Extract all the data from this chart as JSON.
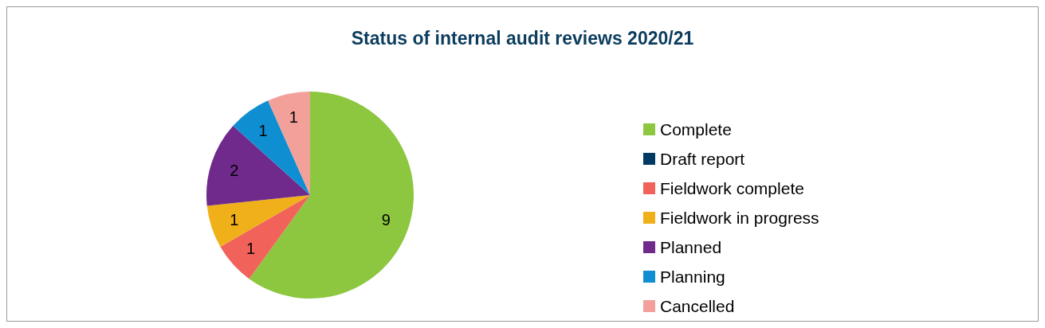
{
  "chart_data": {
    "type": "pie",
    "title": "Status of internal audit reviews 2020/21",
    "categories": [
      "Complete",
      "Draft report",
      "Fieldwork complete",
      "Fieldwork in progress",
      "Planned",
      "Planning",
      "Cancelled"
    ],
    "values": [
      9,
      0,
      1,
      1,
      2,
      1,
      1
    ],
    "value_labels": [
      "9",
      null,
      "1",
      "1",
      "2",
      "1",
      "1"
    ],
    "colors": [
      "#8dc63f",
      "#003a63",
      "#f0625a",
      "#f0b019",
      "#6f2a8c",
      "#0f8fd2",
      "#f4a09a"
    ],
    "legend": "right"
  }
}
